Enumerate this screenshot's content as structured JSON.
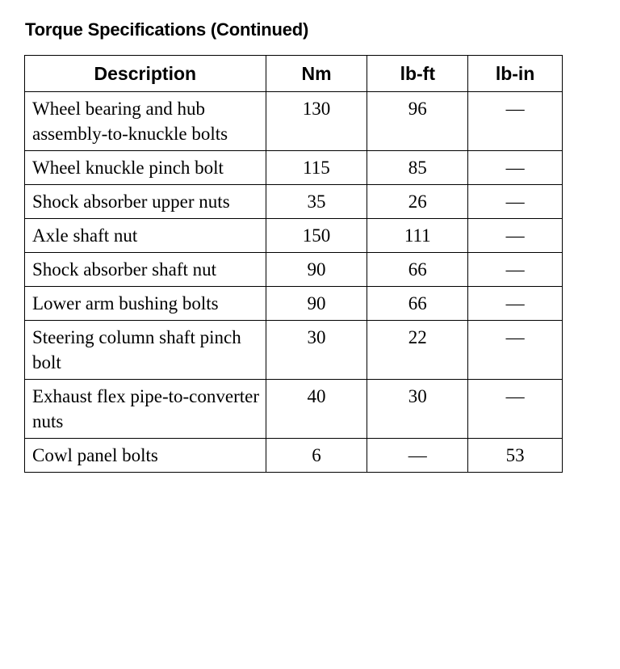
{
  "title": "Torque Specifications (Continued)",
  "table": {
    "headers": [
      "Description",
      "Nm",
      "lb-ft",
      "lb-in"
    ],
    "rows": [
      [
        "Wheel bearing and hub assembly-to-knuckle bolts",
        "130",
        "96",
        "—"
      ],
      [
        "Wheel knuckle pinch bolt",
        "115",
        "85",
        "—"
      ],
      [
        "Shock absorber upper nuts",
        "35",
        "26",
        "—"
      ],
      [
        "Axle shaft nut",
        "150",
        "111",
        "—"
      ],
      [
        "Shock absorber shaft nut",
        "90",
        "66",
        "—"
      ],
      [
        "Lower arm bushing bolts",
        "90",
        "66",
        "—"
      ],
      [
        "Steering column shaft pinch bolt",
        "30",
        "22",
        "—"
      ],
      [
        "Exhaust flex pipe-to-converter nuts",
        "40",
        "30",
        "—"
      ],
      [
        "Cowl panel bolts",
        "6",
        "—",
        "53"
      ]
    ]
  }
}
